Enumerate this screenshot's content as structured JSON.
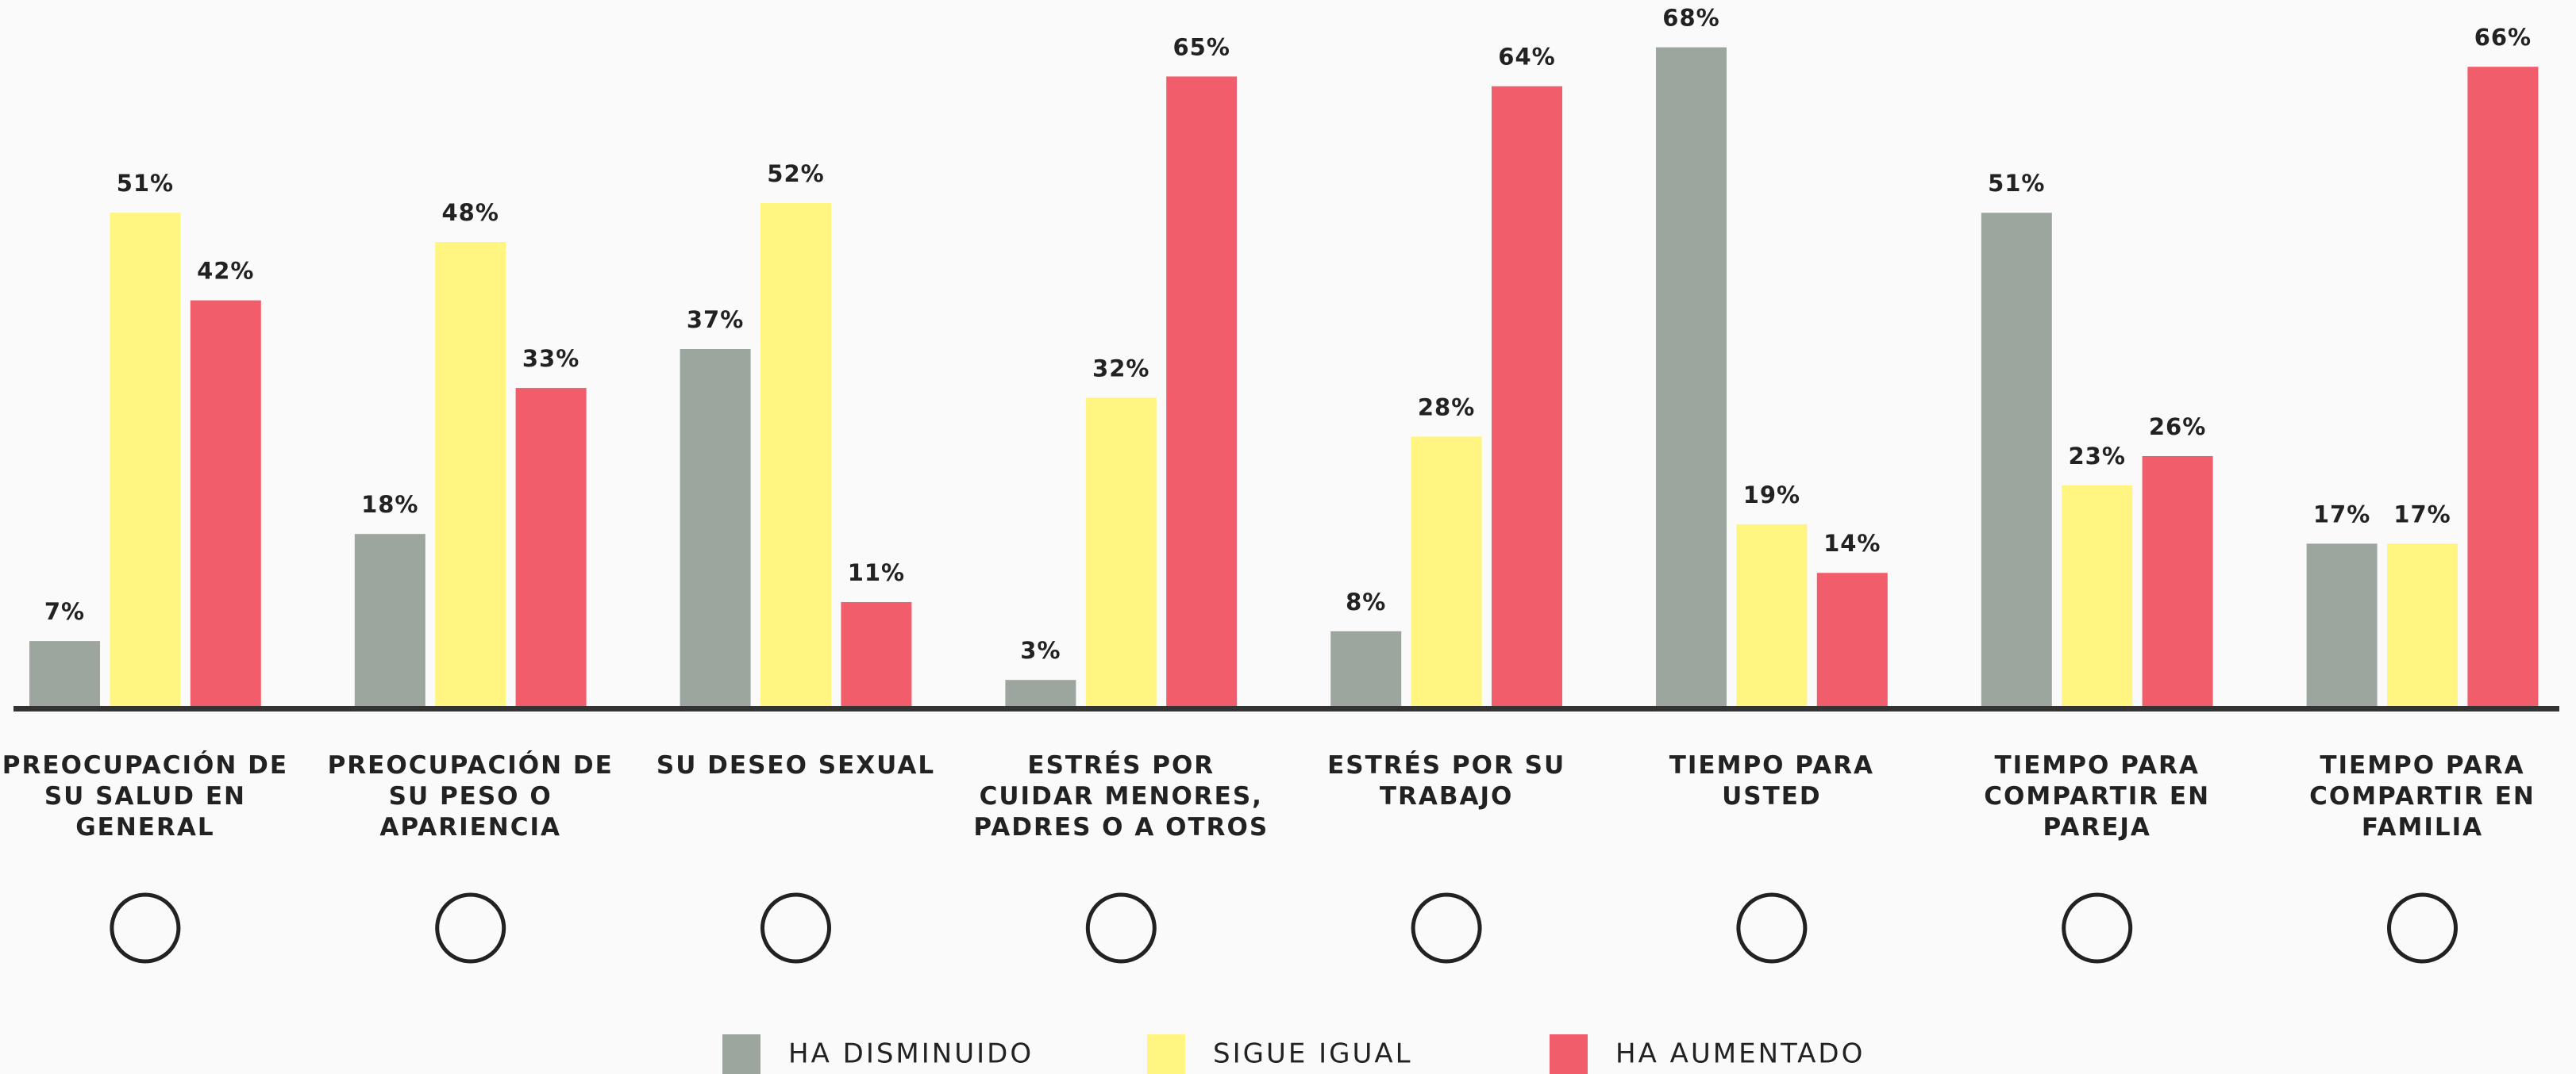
{
  "chart_data": {
    "type": "bar",
    "categories": [
      "PREOCUPACIÓN DE SU SALUD EN GENERAL",
      "PREOCUPACIÓN DE SU PESO O APARIENCIA",
      "SU DESEO SEXUAL",
      "ESTRÉS POR CUIDAR MENORES, PADRES O A OTROS",
      "ESTRÉS POR SU TRABAJO",
      "TIEMPO PARA USTED",
      "TIEMPO PARA COMPARTIR EN PAREJA",
      "TIEMPO PARA COMPARTIR EN FAMILIA"
    ],
    "series": [
      {
        "name": "HA DISMINUIDO",
        "color": "#9da69e",
        "values": [
          7,
          18,
          37,
          3,
          8,
          68,
          51,
          17
        ],
        "value_labels": [
          "7%",
          "18%",
          "37%",
          "3%",
          "8%",
          "68%",
          "51%",
          "17%"
        ]
      },
      {
        "name": "SIGUE IGUAL",
        "color": "#fff580",
        "values": [
          51,
          48,
          52,
          32,
          28,
          19,
          23,
          17
        ],
        "value_labels": [
          "51%",
          "48%",
          "52%",
          "32%",
          "28%",
          "19%",
          "23%",
          "17%"
        ]
      },
      {
        "name": "HA AUMENTADO",
        "color": "#f25d6b",
        "values": [
          42,
          33,
          11,
          65,
          64,
          14,
          26,
          66
        ],
        "value_labels": [
          "42%",
          "33%",
          "11%",
          "65%",
          "64%",
          "14%",
          "26%",
          "66%"
        ]
      }
    ],
    "legend": "bottom"
  }
}
